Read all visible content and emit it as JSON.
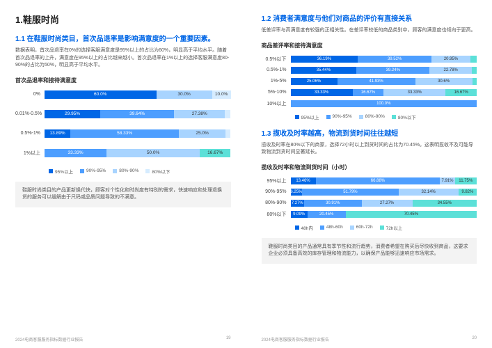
{
  "colors": {
    "c1": "#0066e6",
    "c2": "#4d9eff",
    "c3": "#a8d4ff",
    "c4": "#d6ecff",
    "c5": "#5ce0d8"
  },
  "left": {
    "h1": "1.鞋服时尚",
    "h2": "1.1 在鞋服时尚类目，首次品退率是影响满意度的一个重要因素。",
    "body": "数据表明，首次品退率在0%的选择客服满意度是95%以上的占比为60%，明显高于平均水平。随着首次品退率的上升，满意度在95%以上的占比越来越小。首次品退率在1%以上的选择客服满意度80-90%的占比为50%，明显高于平均水平。",
    "chartTitle": "首次品退率和接待满意度",
    "rows": [
      {
        "label": "0%",
        "segs": [
          {
            "v": 60.0,
            "t": "60.0%",
            "c": "c1"
          },
          {
            "v": 30.0,
            "t": "30.0%",
            "c": "c3",
            "light": true
          },
          {
            "v": 10.0,
            "t": "10.0%",
            "c": "c4",
            "light": true
          }
        ]
      },
      {
        "label": "0.01%-0.5%",
        "segs": [
          {
            "v": 29.95,
            "t": "29.95%",
            "c": "c1"
          },
          {
            "v": 39.64,
            "t": "39.64%",
            "c": "c2"
          },
          {
            "v": 27.38,
            "t": "27.38%",
            "c": "c3",
            "light": true
          },
          {
            "v": 3.03,
            "t": "3.03%",
            "c": "c4",
            "light": true,
            "out": true
          }
        ]
      },
      {
        "label": "0.5%-1%",
        "segs": [
          {
            "v": 13.89,
            "t": "13.89%",
            "c": "c1"
          },
          {
            "v": 58.33,
            "t": "58.33%",
            "c": "c2"
          },
          {
            "v": 25.0,
            "t": "25.0%",
            "c": "c3",
            "light": true
          },
          {
            "v": 2.78,
            "t": "2.78%",
            "c": "c4",
            "light": true,
            "out": true
          }
        ]
      },
      {
        "label": "1%以上",
        "segs": [
          {
            "v": 33.33,
            "t": "33.33%",
            "c": "c2"
          },
          {
            "v": 50.0,
            "t": "50.0%",
            "c": "c3",
            "light": true
          },
          {
            "v": 16.67,
            "t": "16.67%",
            "c": "c5",
            "light": true
          }
        ]
      }
    ],
    "legend": [
      {
        "t": "95%以上",
        "c": "c1"
      },
      {
        "t": "90%-95%",
        "c": "c2"
      },
      {
        "t": "80%-90%",
        "c": "c3"
      },
      {
        "t": "80%以下",
        "c": "c4"
      }
    ],
    "note": "鞋服时尚类目的产品更新换代快，顾客对个性化和时尚度有特别的需求，快速响应和处理退换货的服务可以缓解由于尺码或品质问题导致的不满意。",
    "footer": "2024电商客服服务指标数据行业报告",
    "page": "19"
  },
  "right": {
    "h2a": "1.2 消费者满意度与他们对商品的评价有直接关系",
    "bodya": "低差评率与高满意度有较强的正相关性。在差评率较低的商品类别中，顾客的满意度也倾向于更高。",
    "chartTitleA": "商品差评率和接待满意度",
    "rowsA": [
      {
        "label": "0.5%以下",
        "segs": [
          {
            "v": 36.19,
            "t": "36.19%",
            "c": "c1"
          },
          {
            "v": 39.52,
            "t": "39.52%",
            "c": "c2"
          },
          {
            "v": 20.95,
            "t": "20.95%",
            "c": "c3",
            "light": true
          },
          {
            "v": 3.33,
            "t": "3.33%",
            "c": "c5",
            "light": true,
            "out": true
          }
        ]
      },
      {
        "label": "0.5%-1%",
        "segs": [
          {
            "v": 35.44,
            "t": "35.44%",
            "c": "c1"
          },
          {
            "v": 39.24,
            "t": "39.24%",
            "c": "c2"
          },
          {
            "v": 22.78,
            "t": "22.78%",
            "c": "c3",
            "light": true
          },
          {
            "v": 2.53,
            "t": "2.53%",
            "c": "c5",
            "light": true,
            "out": true
          }
        ]
      },
      {
        "label": "1%-5%",
        "segs": [
          {
            "v": 25.06,
            "t": "25.06%",
            "c": "c1"
          },
          {
            "v": 41.93,
            "t": "41.93%",
            "c": "c2"
          },
          {
            "v": 30.6,
            "t": "30.6%",
            "c": "c3",
            "light": true
          },
          {
            "v": 2.41,
            "t": "2.41%",
            "c": "c5",
            "light": true,
            "out": true
          }
        ]
      },
      {
        "label": "5%-10%",
        "segs": [
          {
            "v": 33.33,
            "t": "33.33%",
            "c": "c1"
          },
          {
            "v": 16.67,
            "t": "16.67%",
            "c": "c2"
          },
          {
            "v": 33.33,
            "t": "33.33%",
            "c": "c3",
            "light": true
          },
          {
            "v": 16.67,
            "t": "16.67%",
            "c": "c5",
            "light": true
          }
        ]
      },
      {
        "label": "10%以上",
        "segs": [
          {
            "v": 100.0,
            "t": "100.0%",
            "c": "c2"
          }
        ]
      }
    ],
    "legendA": [
      {
        "t": "95%以上",
        "c": "c1"
      },
      {
        "t": "90%-95%",
        "c": "c2"
      },
      {
        "t": "80%-90%",
        "c": "c3"
      },
      {
        "t": "80%以下",
        "c": "c5"
      }
    ],
    "h2b": "1.3 揽收及时率越高，物流到货时间往往越短",
    "bodyb": "揽收及时率在80%以下的商家，选择72小时以上到货时间的占比为70.45%。这表明揽收不及可能导致物流到货时间显著延长。",
    "chartTitleB": "揽收及时率和物流到货时间（小时）",
    "rowsB": [
      {
        "label": "95%以上",
        "segs": [
          {
            "v": 13.46,
            "t": "13.46%",
            "c": "c1"
          },
          {
            "v": 66.88,
            "t": "66.88%",
            "c": "c2"
          },
          {
            "v": 7.91,
            "t": "7.91%",
            "c": "c3",
            "light": true
          },
          {
            "v": 11.75,
            "t": "11.75%",
            "c": "c5",
            "light": true
          }
        ]
      },
      {
        "label": "90%-95%",
        "segs": [
          {
            "v": 6.25,
            "t": "6.25%",
            "c": "c1"
          },
          {
            "v": 51.79,
            "t": "51.79%",
            "c": "c2"
          },
          {
            "v": 32.14,
            "t": "32.14%",
            "c": "c3",
            "light": true
          },
          {
            "v": 9.82,
            "t": "9.82%",
            "c": "c5",
            "light": true
          }
        ]
      },
      {
        "label": "80%-90%",
        "segs": [
          {
            "v": 7.27,
            "t": "7.27%",
            "c": "c1"
          },
          {
            "v": 30.91,
            "t": "30.91%",
            "c": "c2"
          },
          {
            "v": 27.27,
            "t": "27.27%",
            "c": "c3",
            "light": true
          },
          {
            "v": 34.55,
            "t": "34.55%",
            "c": "c5",
            "light": true
          }
        ]
      },
      {
        "label": "80%以下",
        "segs": [
          {
            "v": 9.09,
            "t": "9.09%",
            "c": "c1"
          },
          {
            "v": 20.45,
            "t": "20.45%",
            "c": "c2"
          },
          {
            "v": 70.45,
            "t": "70.45%",
            "c": "c5",
            "light": true
          }
        ]
      }
    ],
    "legendB": [
      {
        "t": "48h内",
        "c": "c1"
      },
      {
        "t": "48h-60h",
        "c": "c2"
      },
      {
        "t": "60h-72h",
        "c": "c3"
      },
      {
        "t": "72h以上",
        "c": "c5"
      }
    ],
    "note": "鞋服时尚类目的产品通常具有季节性和流行趋势，消费者希望在购买后尽快收到商品，这要求企业必须具备高效的库存管理和物流能力，以确保产品能够迅速响应市场需求。",
    "footer": "2024电商客服服务指标数据行业报告",
    "page": "20"
  }
}
